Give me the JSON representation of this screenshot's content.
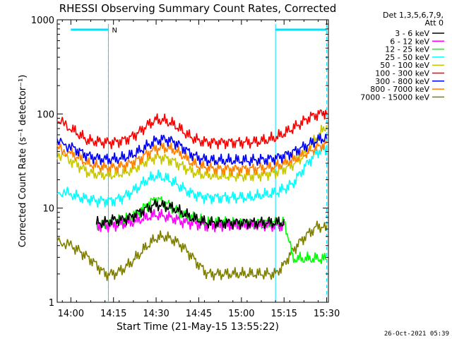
{
  "chart_data": {
    "type": "line",
    "title": "RHESSI Observing Summary Count Rates, Corrected",
    "xlabel": "Start Time (21-May-15 13:55:22)",
    "ylabel": "Corrected Count Rate (s⁻¹ detector⁻¹)",
    "y_scale": "log",
    "ylim": [
      1,
      1000
    ],
    "xlim_minutes": [
      13.9,
      31.0
    ],
    "x_ticks": [
      {
        "label": "14:00",
        "value": 14.0
      },
      {
        "label": "14:15",
        "value": 14.25
      },
      {
        "label": "14:30",
        "value": 14.5
      },
      {
        "label": "14:45",
        "value": 14.75
      },
      {
        "label": "15:00",
        "value": 15.0
      },
      {
        "label": "15:15",
        "value": 15.25
      },
      {
        "label": "15:30",
        "value": 15.5
      }
    ],
    "y_ticks": [
      {
        "label": "1",
        "value": 1
      },
      {
        "label": "10",
        "value": 10
      },
      {
        "label": "100",
        "value": 100
      },
      {
        "label": "1000",
        "value": 1000
      }
    ],
    "legend_header": [
      "Det 1,3,5,6,7,9,",
      "Att 0"
    ],
    "legend_placement": "right",
    "night_bar_label": "N",
    "night_intervals_hours": [
      [
        14.0,
        14.22
      ],
      [
        15.2,
        15.5
      ]
    ],
    "vertical_lines_hours": [
      14.22,
      15.2
    ],
    "x_hours": [
      13.92,
      14.0,
      14.05,
      14.1,
      14.15,
      14.2,
      14.25,
      14.3,
      14.35,
      14.4,
      14.45,
      14.5,
      14.55,
      14.6,
      14.65,
      14.7,
      14.75,
      14.8,
      14.85,
      14.9,
      14.95,
      15.0,
      15.05,
      15.1,
      15.15,
      15.2,
      15.25,
      15.3,
      15.35,
      15.4,
      15.45,
      15.5
    ],
    "series": [
      {
        "name": "3 - 6 keV",
        "color": "#000000",
        "values": [
          null,
          null,
          null,
          null,
          7,
          7,
          7.5,
          7.5,
          8,
          9,
          10,
          11,
          10.5,
          10,
          9,
          8,
          7.5,
          7,
          7,
          7,
          7,
          7,
          7,
          7,
          7,
          7,
          7,
          null,
          null,
          null,
          null,
          null
        ]
      },
      {
        "name": "6 - 12 keV",
        "color": "#ff00ff",
        "values": [
          null,
          null,
          null,
          null,
          6.5,
          6.5,
          6.5,
          6.8,
          7,
          7.5,
          8,
          8.5,
          8.2,
          7.8,
          7.2,
          7,
          6.8,
          6.5,
          6.5,
          6.5,
          6.5,
          6.5,
          6.5,
          6.5,
          6.5,
          6.5,
          6.5,
          null,
          null,
          null,
          null,
          null
        ]
      },
      {
        "name": "12 - 25 keV",
        "color": "#00ff00",
        "values": [
          null,
          null,
          null,
          null,
          6.5,
          6.5,
          7,
          7.5,
          8,
          9,
          11,
          12.5,
          11.5,
          10,
          8.5,
          8,
          7.5,
          7,
          7,
          7,
          7,
          7,
          7,
          7,
          7,
          7,
          7,
          2.9,
          2.9,
          2.9,
          2.9,
          2.9
        ]
      },
      {
        "name": "25 - 50 keV",
        "color": "#00ffff",
        "values": [
          15,
          14,
          13,
          12.5,
          12,
          12,
          12,
          13,
          14.5,
          17,
          20,
          22,
          21,
          19,
          16.5,
          14.5,
          13.5,
          13,
          13,
          13,
          13,
          13,
          13,
          13.5,
          14,
          14.5,
          16,
          18,
          24,
          32,
          40,
          42
        ]
      },
      {
        "name": "50 - 100 keV",
        "color": "#c8c800",
        "values": [
          38,
          32,
          28,
          24,
          23,
          22.5,
          22.5,
          23.5,
          25,
          28,
          32,
          35,
          34,
          31.5,
          28,
          25,
          23,
          22.5,
          22,
          22,
          22,
          22,
          22,
          22.5,
          23,
          24,
          26,
          29,
          34,
          44,
          58,
          75
        ]
      },
      {
        "name": "100 - 300 keV",
        "color": "#ff0000",
        "values": [
          85,
          70,
          60,
          52,
          51,
          50,
          50,
          52,
          56,
          64,
          76,
          87,
          85,
          78,
          67,
          57,
          52,
          50,
          50,
          50,
          50,
          50,
          50,
          51,
          53,
          56,
          62,
          70,
          80,
          92,
          100,
          105
        ]
      },
      {
        "name": "300 - 800 keV",
        "color": "#0000ff",
        "values": [
          50,
          45,
          40,
          36,
          34,
          33,
          33,
          34,
          36,
          40,
          46,
          52,
          54,
          51,
          45,
          38,
          34,
          32.5,
          32,
          32,
          32,
          32,
          32,
          32.5,
          33,
          34,
          36,
          39,
          43,
          48,
          53,
          56
        ]
      },
      {
        "name": "800 - 7000 keV",
        "color": "#ff8000",
        "values": [
          43,
          38,
          34,
          30,
          28,
          27,
          27,
          28,
          30,
          33,
          38,
          43,
          44,
          42,
          37,
          31,
          28,
          27,
          26,
          26,
          26,
          26,
          26,
          26.5,
          27,
          28,
          30,
          32,
          36,
          40,
          45,
          48
        ]
      },
      {
        "name": "7000 - 15000 keV",
        "color": "#808000",
        "values": [
          4.5,
          4,
          3.5,
          3,
          2.5,
          2,
          2,
          2.2,
          2.6,
          3.2,
          4,
          4.8,
          5,
          4.6,
          4,
          3.2,
          2.5,
          2,
          2,
          2,
          2,
          2,
          2,
          2,
          2,
          2,
          2.5,
          3.5,
          4.5,
          5.5,
          6.5,
          6
        ]
      }
    ]
  },
  "footer": {
    "timestamp": "26-Oct-2021 05:39"
  }
}
